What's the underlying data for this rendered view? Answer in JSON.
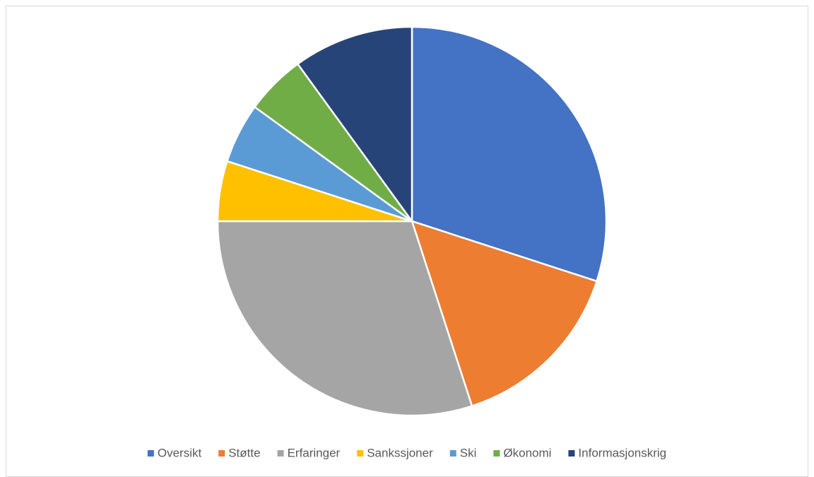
{
  "chart_data": {
    "type": "pie",
    "categories": [
      "Oversikt",
      "Støtte",
      "Erfaringer",
      "Sankssjoner",
      "Ski",
      "Økonomi",
      "Informasjonskrig"
    ],
    "values": [
      30,
      15,
      30,
      5,
      5,
      5,
      10
    ],
    "colors": [
      "#4472c4",
      "#ed7d31",
      "#a5a5a5",
      "#ffc000",
      "#5b9bd5",
      "#70ad47",
      "#264478"
    ],
    "legend": "bottom"
  }
}
